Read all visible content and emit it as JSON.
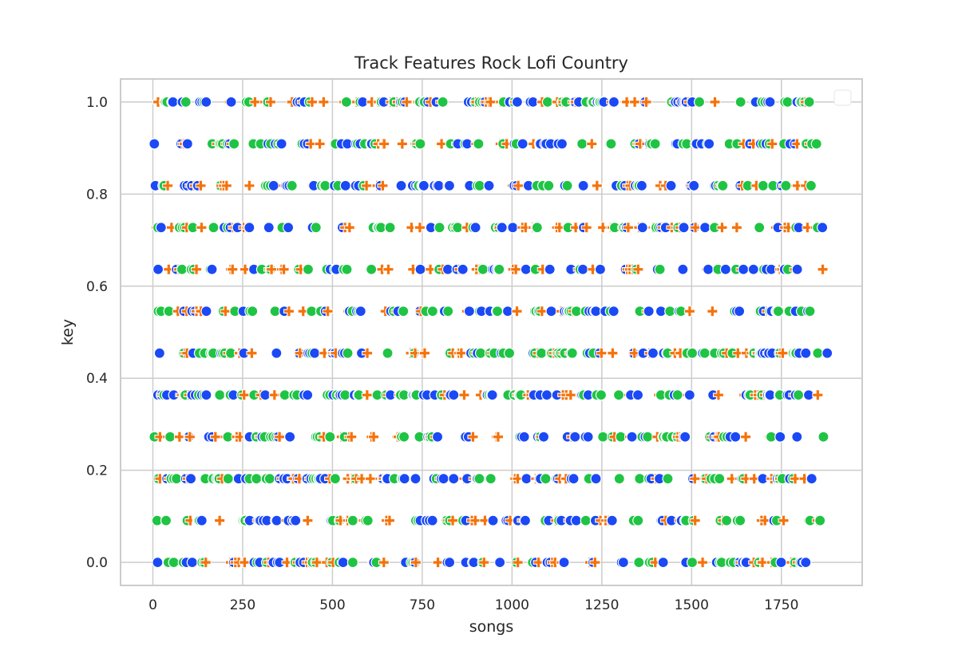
{
  "chart_data": {
    "type": "scatter",
    "title": "Track Features Rock Lofi Country",
    "xlabel": "songs",
    "ylabel": "key",
    "xlim": [
      -90,
      1975
    ],
    "ylim": [
      -0.05,
      1.05
    ],
    "x_ticks": [
      0,
      250,
      500,
      750,
      1000,
      1250,
      1500,
      1750
    ],
    "x_tick_labels": [
      "0",
      "250",
      "500",
      "750",
      "1000",
      "1250",
      "1500",
      "1750"
    ],
    "y_ticks": [
      0.0,
      0.2,
      0.4,
      0.6,
      0.8,
      1.0
    ],
    "y_tick_labels": [
      "0.0",
      "0.2",
      "0.4",
      "0.6",
      "0.8",
      "1.0"
    ],
    "y_levels": [
      0.0,
      0.0909,
      0.1818,
      0.2727,
      0.3636,
      0.4545,
      0.5455,
      0.6364,
      0.7273,
      0.8182,
      0.9091,
      1.0
    ],
    "x_range": [
      0,
      1880
    ],
    "grid": true,
    "legend": {
      "placement": "top-right",
      "entries": []
    },
    "series": [
      {
        "marker": "circle",
        "color": "#1a49f5"
      },
      {
        "marker": "plus",
        "color": "#f5720a"
      },
      {
        "marker": "circle",
        "color": "#1fc444"
      }
    ],
    "point_count_note": "",
    "colors": {
      "axes_edge": "#cccccc",
      "grid": "#cccccc",
      "text": "#262626",
      "background": "#ffffff"
    }
  }
}
